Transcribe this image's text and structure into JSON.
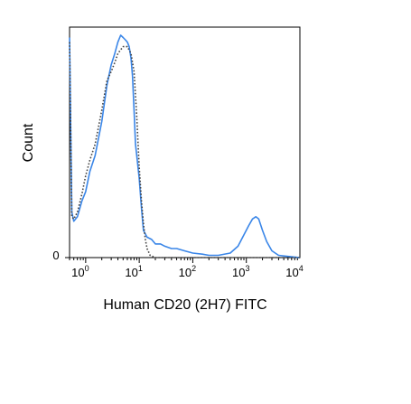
{
  "chart_data": {
    "type": "area",
    "xlabel": "Human CD20 (2H7) FITC",
    "ylabel": "Count",
    "x_scale": "log",
    "xlim": [
      0.5,
      10000
    ],
    "ylim": [
      0,
      1
    ],
    "x_ticks": [
      {
        "value": 1,
        "base": "10",
        "exp": "0"
      },
      {
        "value": 10,
        "base": "10",
        "exp": "1"
      },
      {
        "value": 100,
        "base": "10",
        "exp": "2"
      },
      {
        "value": 1000,
        "base": "10",
        "exp": "3"
      },
      {
        "value": 10000,
        "base": "10",
        "exp": "4"
      }
    ],
    "y_tick_label": "0",
    "series": [
      {
        "style": "solid",
        "color": "#3a86e8",
        "x": [
          0.5,
          0.55,
          0.6,
          0.7,
          0.85,
          1.0,
          1.2,
          1.5,
          2.0,
          2.5,
          3.0,
          3.5,
          4.0,
          4.5,
          5.0,
          5.5,
          6.0,
          6.5,
          7.0,
          7.5,
          8.0,
          8.5,
          9.0,
          10.0,
          11.0,
          12.0,
          14.0,
          17.0,
          20.0,
          25.0,
          30.0,
          40.0,
          50.0,
          70.0,
          100.0,
          150.0,
          200.0,
          300.0,
          500.0,
          700.0,
          900.0,
          1100.0,
          1300.0,
          1500.0,
          1700.0,
          2000.0,
          2400.0,
          3000.0,
          4000.0,
          6000.0,
          10000.0
        ],
        "y": [
          0.97,
          0.2,
          0.16,
          0.18,
          0.25,
          0.29,
          0.38,
          0.45,
          0.6,
          0.76,
          0.85,
          0.9,
          0.95,
          0.98,
          0.97,
          0.96,
          0.95,
          0.93,
          0.88,
          0.8,
          0.65,
          0.5,
          0.45,
          0.35,
          0.22,
          0.12,
          0.09,
          0.08,
          0.06,
          0.06,
          0.05,
          0.04,
          0.04,
          0.03,
          0.02,
          0.015,
          0.01,
          0.01,
          0.02,
          0.05,
          0.1,
          0.14,
          0.17,
          0.18,
          0.17,
          0.12,
          0.07,
          0.03,
          0.01,
          0.005,
          0.0
        ]
      },
      {
        "style": "dotted",
        "color": "#444444",
        "x": [
          0.5,
          0.55,
          0.6,
          0.7,
          0.85,
          1.0,
          1.2,
          1.5,
          2.0,
          2.5,
          3.0,
          3.5,
          4.0,
          5.0,
          6.0,
          7.0,
          8.0,
          9.0,
          10.0,
          11.0,
          12.0,
          13.0,
          14.0,
          16.0,
          20.0,
          30.0,
          100.0,
          10000.0
        ],
        "y": [
          0.95,
          0.18,
          0.17,
          0.2,
          0.28,
          0.36,
          0.43,
          0.5,
          0.65,
          0.78,
          0.82,
          0.86,
          0.9,
          0.93,
          0.93,
          0.9,
          0.82,
          0.62,
          0.4,
          0.25,
          0.15,
          0.08,
          0.04,
          0.01,
          0.0,
          0.0,
          0.0,
          0.0
        ]
      }
    ]
  }
}
